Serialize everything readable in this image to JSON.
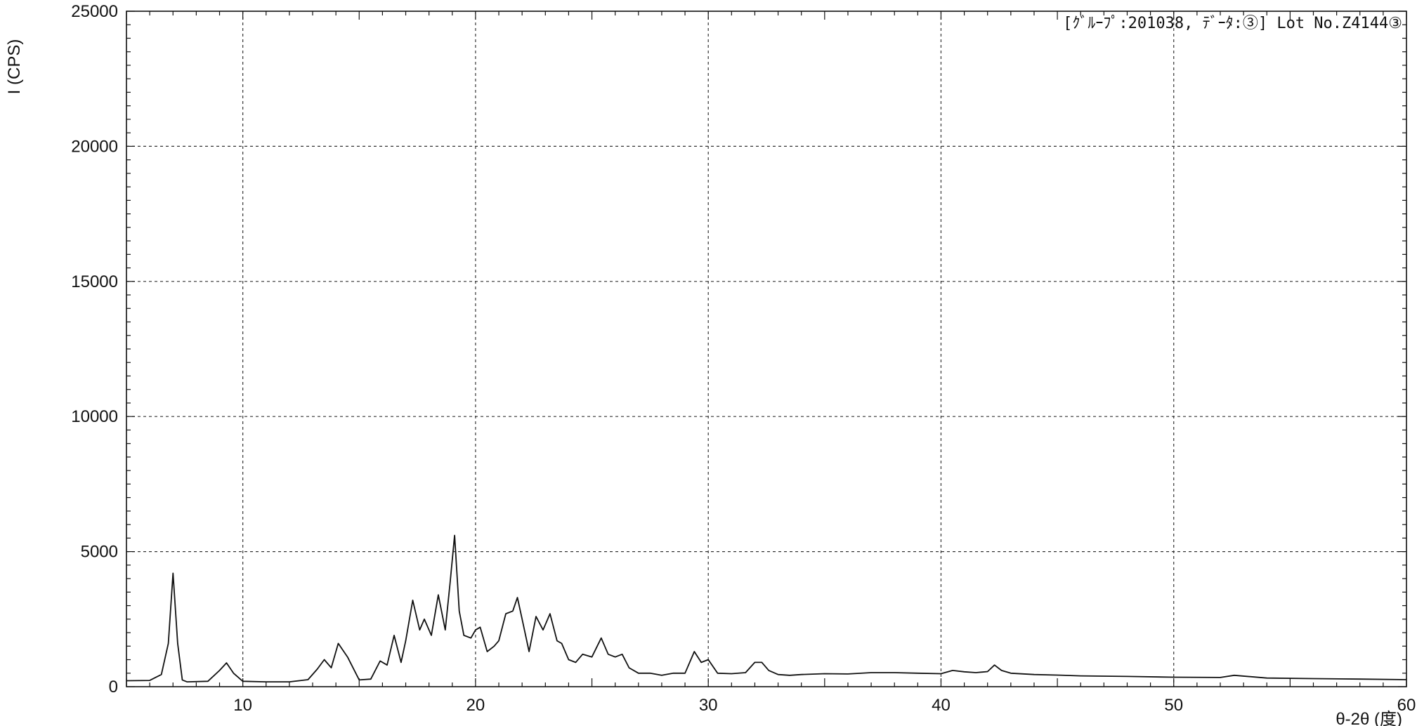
{
  "chart_data": {
    "type": "line",
    "title": "",
    "annotation": "[ｸﾞﾙｰﾌﾟ:201038, ﾃﾞｰﾀ:③] Lot No.Z4144③",
    "xlabel": "θ-2θ (度)",
    "ylabel": "I (CPS)",
    "xlim": [
      5,
      60
    ],
    "ylim": [
      0,
      25000
    ],
    "x_ticks": [
      10,
      20,
      30,
      40,
      50,
      60
    ],
    "y_ticks": [
      0,
      5000,
      10000,
      15000,
      20000,
      25000
    ],
    "grid": true,
    "series": [
      {
        "x": [
          5.0,
          6.0,
          6.5,
          6.8,
          7.0,
          7.2,
          7.4,
          7.6,
          8.5,
          9.0,
          9.3,
          9.6,
          10.0,
          11.0,
          12.0,
          12.8,
          13.2,
          13.5,
          13.8,
          14.1,
          14.5,
          15.0,
          15.5,
          15.9,
          16.2,
          16.5,
          16.8,
          17.0,
          17.3,
          17.6,
          17.8,
          18.1,
          18.4,
          18.7,
          18.9,
          19.1,
          19.3,
          19.5,
          19.8,
          20.0,
          20.2,
          20.5,
          20.8,
          21.0,
          21.3,
          21.6,
          21.8,
          22.0,
          22.3,
          22.6,
          22.9,
          23.2,
          23.5,
          23.7,
          24.0,
          24.3,
          24.6,
          25.0,
          25.4,
          25.7,
          26.0,
          26.3,
          26.6,
          27.0,
          27.5,
          28.0,
          28.5,
          29.0,
          29.4,
          29.7,
          30.0,
          30.4,
          31.0,
          31.6,
          32.0,
          32.3,
          32.6,
          33.0,
          33.5,
          34.0,
          35.0,
          36.0,
          37.0,
          38.0,
          39.0,
          40.0,
          40.5,
          41.0,
          41.5,
          42.0,
          42.3,
          42.6,
          43.0,
          44.0,
          45.0,
          46.0,
          48.0,
          50.0,
          52.0,
          52.6,
          54.0,
          56.0,
          58.0,
          60.0
        ],
        "y": [
          220,
          230,
          450,
          1600,
          4200,
          1600,
          250,
          180,
          200,
          600,
          880,
          500,
          200,
          180,
          180,
          260,
          650,
          1000,
          700,
          1600,
          1100,
          250,
          280,
          950,
          800,
          1900,
          900,
          1700,
          3200,
          2100,
          2500,
          1900,
          3400,
          2100,
          3800,
          5600,
          2800,
          1900,
          1800,
          2100,
          2200,
          1300,
          1500,
          1700,
          2700,
          2800,
          3300,
          2500,
          1300,
          2600,
          2100,
          2700,
          1700,
          1600,
          1000,
          900,
          1200,
          1100,
          1800,
          1200,
          1100,
          1200,
          700,
          500,
          500,
          420,
          500,
          500,
          1300,
          900,
          1000,
          500,
          480,
          520,
          900,
          900,
          600,
          450,
          420,
          450,
          480,
          470,
          520,
          520,
          500,
          480,
          600,
          550,
          520,
          560,
          800,
          600,
          500,
          450,
          430,
          400,
          380,
          350,
          340,
          420,
          320,
          300,
          280,
          260
        ]
      }
    ]
  }
}
